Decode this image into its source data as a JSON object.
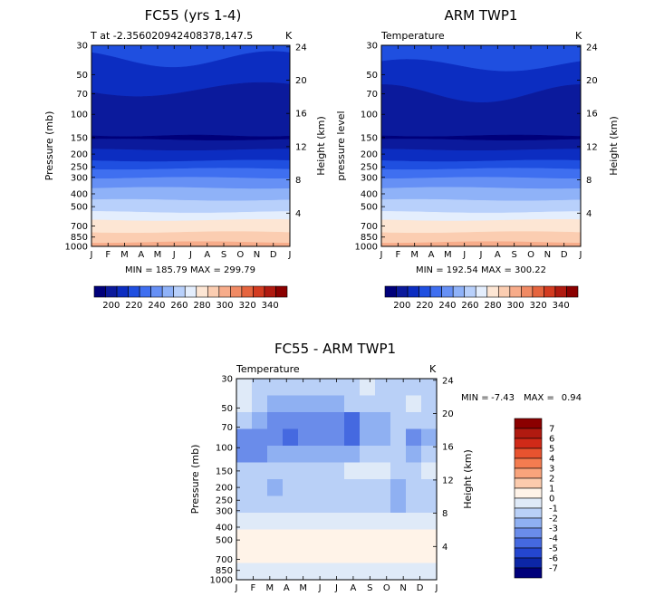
{
  "chart_data": [
    {
      "type": "heatmap",
      "title": "FC55 (yrs 1-4)",
      "subtitle_left": "T at -2.356020942408378,147.5",
      "subtitle_right": "K",
      "ylabel_left": "Pressure (mb)",
      "ylabel_right": "Height (km)",
      "x_ticks": [
        "J",
        "F",
        "M",
        "A",
        "M",
        "J",
        "J",
        "A",
        "S",
        "O",
        "N",
        "D",
        "J"
      ],
      "pressure_ticks": [
        30,
        50,
        70,
        100,
        150,
        200,
        250,
        300,
        400,
        500,
        700,
        850,
        1000
      ],
      "height_ticks": [
        24,
        20,
        16,
        12,
        8,
        4
      ],
      "min_max": "MIN = 185.79 MAX = 299.79",
      "colorbar_labels": [
        200,
        220,
        240,
        260,
        280,
        300,
        320,
        340
      ]
    },
    {
      "type": "heatmap",
      "title": "ARM TWP1",
      "subtitle_left": "Temperature",
      "subtitle_right": "K",
      "ylabel_left": "pressure level",
      "ylabel_right": "Height (km)",
      "x_ticks": [
        "J",
        "F",
        "M",
        "A",
        "M",
        "J",
        "J",
        "A",
        "S",
        "O",
        "N",
        "D",
        "J"
      ],
      "pressure_ticks": [
        30,
        50,
        70,
        100,
        150,
        200,
        250,
        300,
        400,
        500,
        700,
        850,
        1000
      ],
      "height_ticks": [
        24,
        20,
        16,
        12,
        8,
        4
      ],
      "min_max": "MIN = 192.54 MAX = 300.22",
      "colorbar_labels": [
        200,
        220,
        240,
        260,
        280,
        300,
        320,
        340
      ]
    },
    {
      "type": "heatmap",
      "title": "FC55 - ARM TWP1",
      "subtitle_left": "Temperature",
      "subtitle_right": "K",
      "ylabel_left": "Pressure (mb)",
      "ylabel_right": "Height (km)",
      "x_ticks": [
        "J",
        "F",
        "M",
        "A",
        "M",
        "J",
        "J",
        "A",
        "S",
        "O",
        "N",
        "D",
        "J"
      ],
      "pressure_ticks": [
        30,
        50,
        70,
        100,
        150,
        200,
        250,
        300,
        400,
        500,
        700,
        850,
        1000
      ],
      "height_ticks": [
        24,
        20,
        16,
        12,
        8,
        4
      ],
      "min_label": "MIN =",
      "min_value": "-7.43",
      "max_label": "MAX =",
      "max_value": "0.94",
      "colorbar_labels": [
        7,
        6,
        5,
        4,
        3,
        2,
        1,
        0,
        -1,
        -2,
        -3,
        -4,
        -5,
        -6,
        -7
      ]
    }
  ],
  "palette_abs": [
    "#00007a",
    "#0b1a9c",
    "#0c2dc1",
    "#1f4fe0",
    "#3f6ff0",
    "#6690f5",
    "#8fb2f8",
    "#b8d0fb",
    "#e4eefd",
    "#fde6d4",
    "#fbcdb1",
    "#f7ac8a",
    "#f08a64",
    "#e5643e",
    "#d33b20",
    "#b01a10",
    "#8b0000"
  ],
  "palette_diff": [
    "#8b0000",
    "#b01a10",
    "#d02a18",
    "#e8532f",
    "#f47c50",
    "#f9a47c",
    "#fccbad",
    "#fff3e8",
    "#dfeaf8",
    "#b9d0f7",
    "#8fb0f2",
    "#6a8cea",
    "#4569e0",
    "#2446cf",
    "#0c26a6",
    "#00007a"
  ]
}
